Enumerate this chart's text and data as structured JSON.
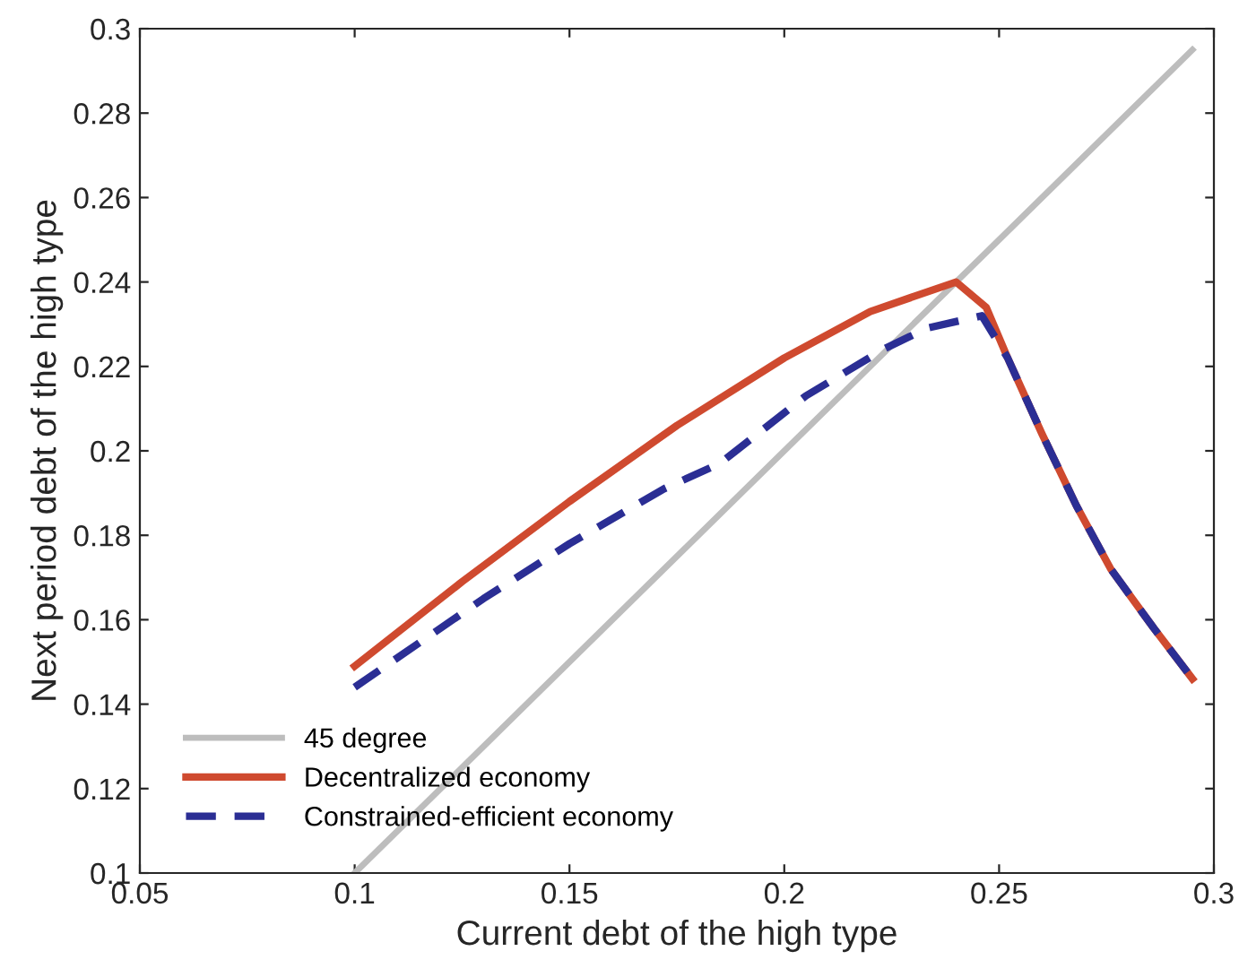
{
  "chart_data": {
    "type": "line",
    "xlabel": "Current debt of the high type",
    "ylabel": "Next period debt of the high type",
    "xlim": [
      0.05,
      0.3
    ],
    "xticks": [
      0.05,
      0.1,
      0.15,
      0.2,
      0.25,
      0.3
    ],
    "ylim": [
      0.1,
      0.3
    ],
    "yticks": [
      0.1,
      0.12,
      0.14,
      0.16,
      0.18,
      0.2,
      0.22,
      0.24,
      0.26,
      0.28,
      0.3
    ],
    "grid": false,
    "legend": "bottom left",
    "series": [
      {
        "name": "45 degree",
        "color": "#bdbdbd",
        "line_style": "solid",
        "x": [
          0.1,
          0.295
        ],
        "values": [
          0.1,
          0.295
        ]
      },
      {
        "name": "Decentralized economy",
        "color": "#cf4a2f",
        "line_style": "solid",
        "x": [
          0.1,
          0.125,
          0.15,
          0.175,
          0.2,
          0.22,
          0.24,
          0.247,
          0.252,
          0.26,
          0.268,
          0.276,
          0.286,
          0.295
        ],
        "values": [
          0.149,
          0.169,
          0.188,
          0.206,
          0.222,
          0.233,
          0.24,
          0.234,
          0.222,
          0.204,
          0.187,
          0.172,
          0.158,
          0.146
        ]
      },
      {
        "name": "Constrained-efficient economy",
        "color": "#2b2e94",
        "line_style": "dashed",
        "x": [
          0.1,
          0.13,
          0.15,
          0.172,
          0.185,
          0.205,
          0.223,
          0.233,
          0.246,
          0.252,
          0.26,
          0.268,
          0.276,
          0.286,
          0.295
        ],
        "values": [
          0.144,
          0.165,
          0.178,
          0.191,
          0.197,
          0.213,
          0.224,
          0.229,
          0.232,
          0.222,
          0.204,
          0.187,
          0.172,
          0.158,
          0.146
        ]
      }
    ]
  }
}
